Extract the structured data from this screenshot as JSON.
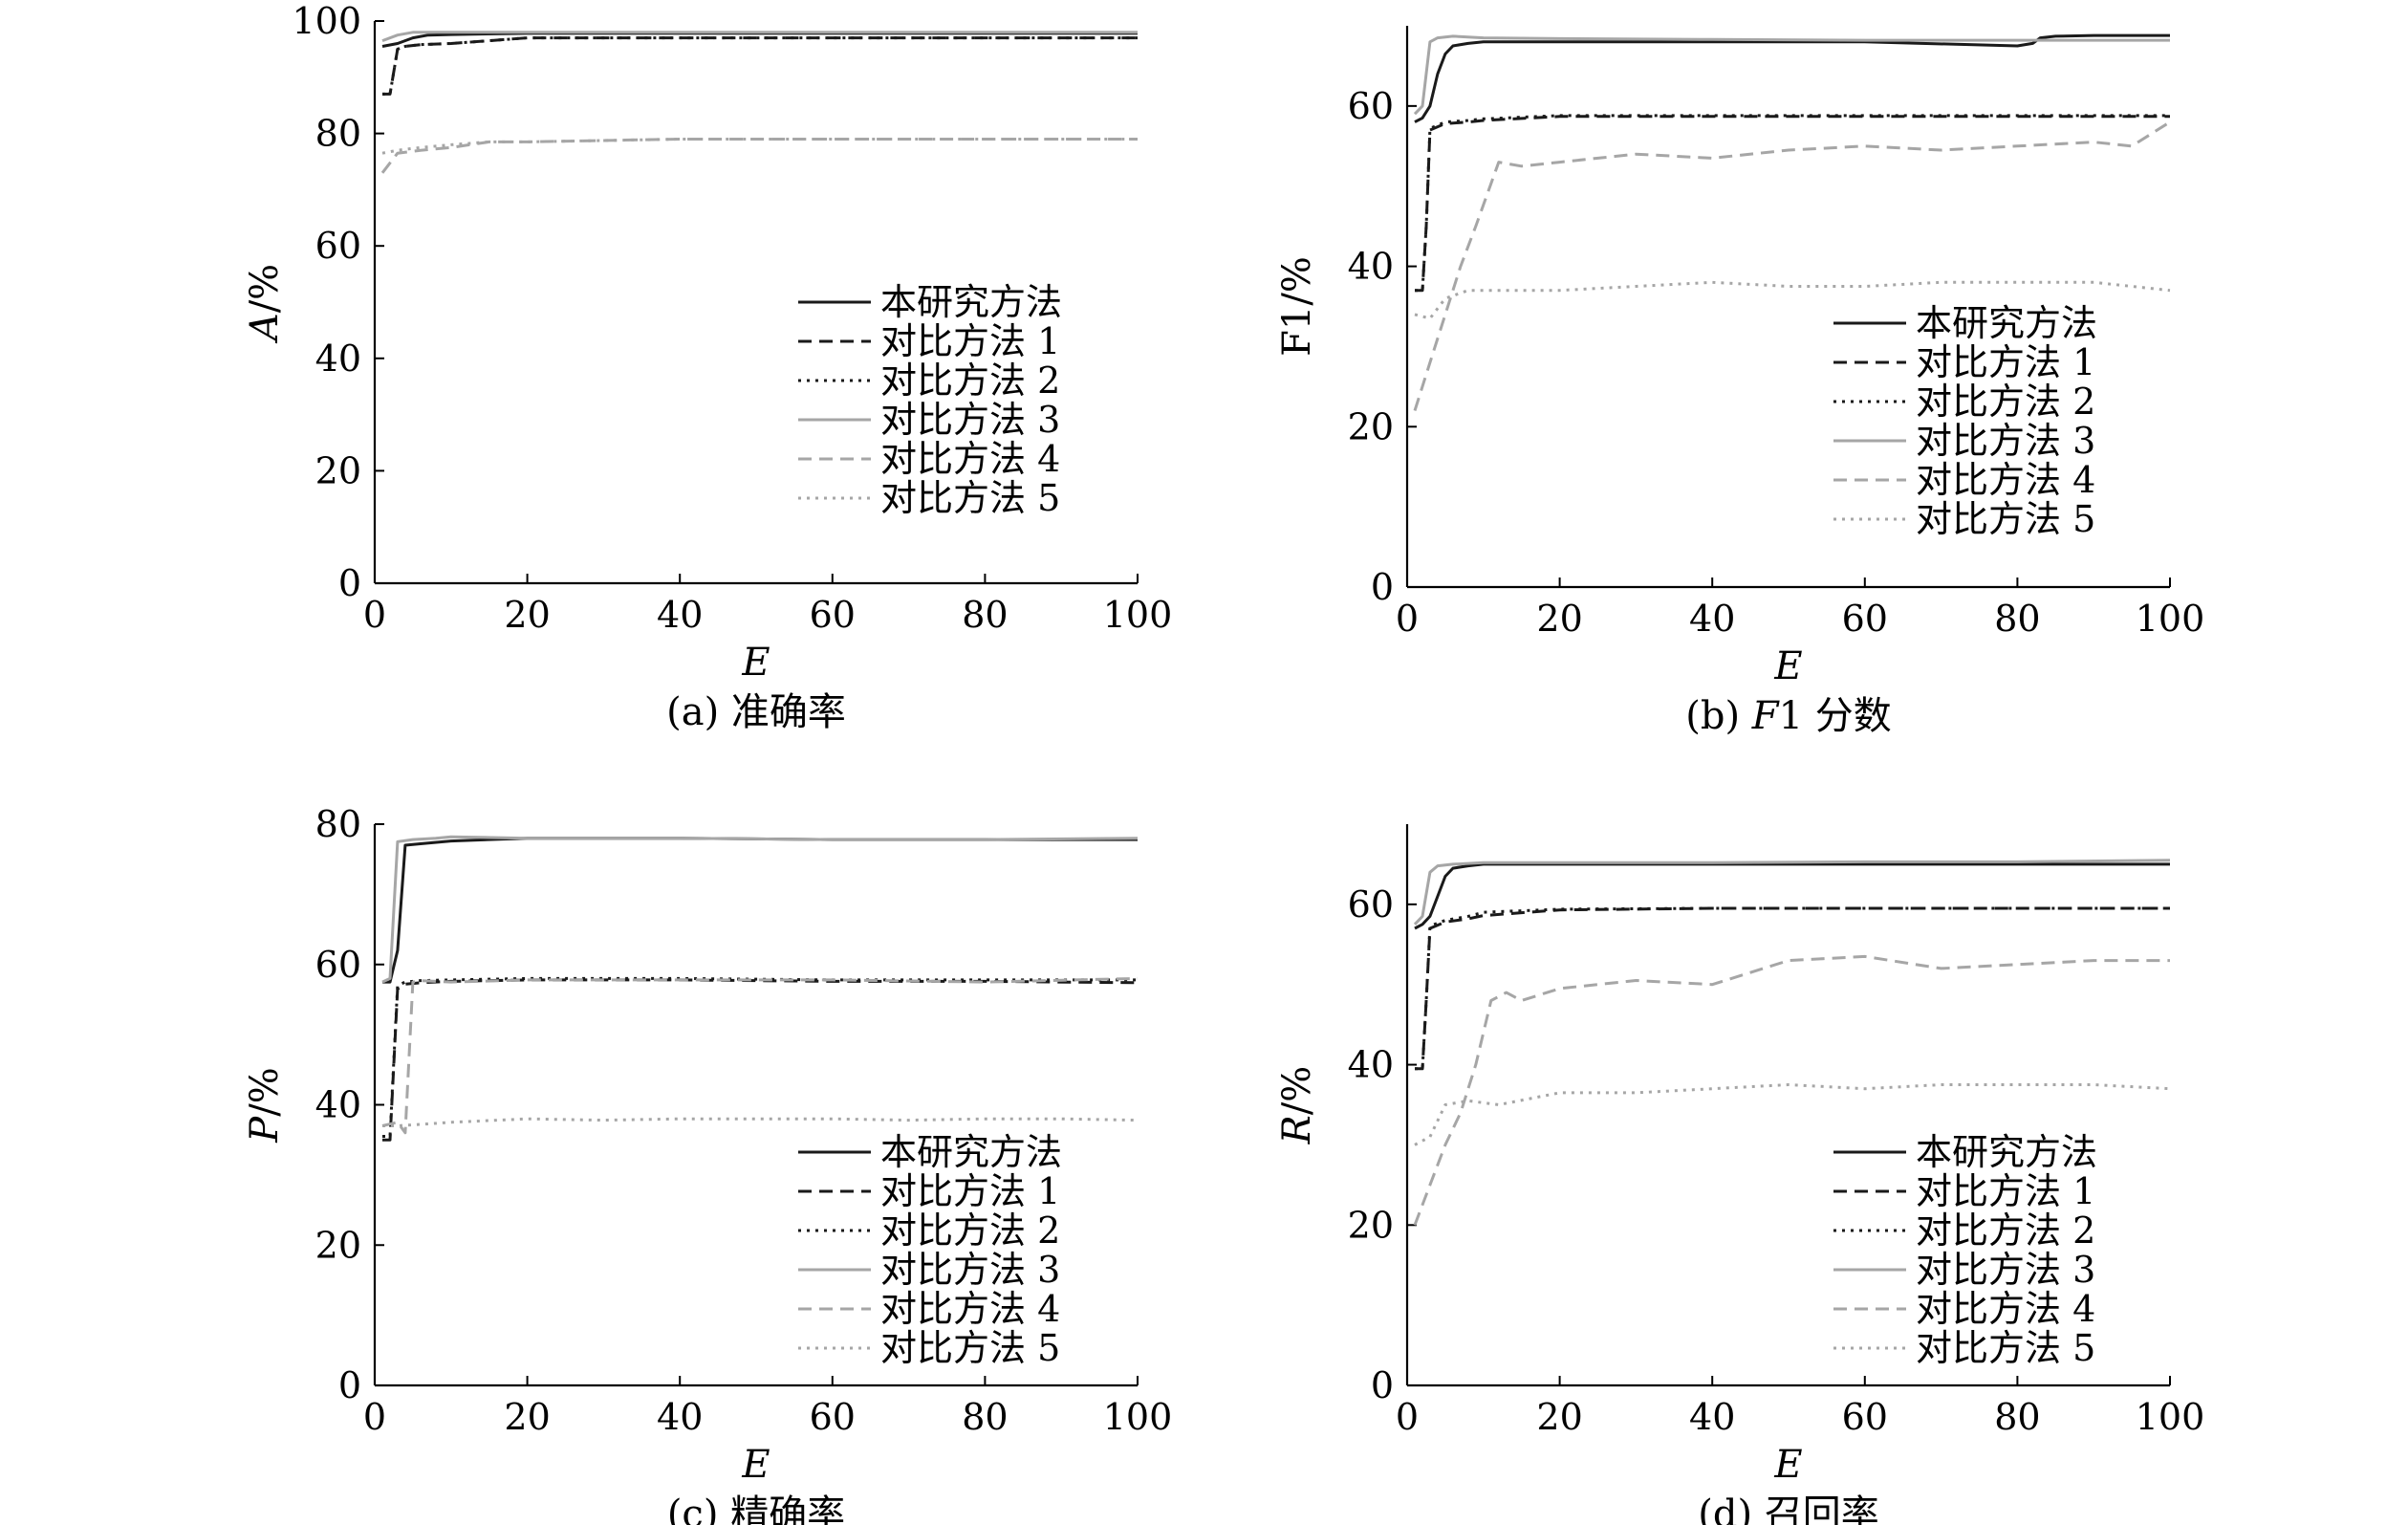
{
  "figure": {
    "legend_labels": [
      "本研究方法",
      "对比方法 1",
      "对比方法 2",
      "对比方法 3",
      "对比方法 4",
      "对比方法 5"
    ],
    "line_styles": [
      {
        "color": "#1a1a1a",
        "dash": "none"
      },
      {
        "color": "#1a1a1a",
        "dash": "14,8"
      },
      {
        "color": "#1a1a1a",
        "dash": "3,6"
      },
      {
        "color": "#a6a6a6",
        "dash": "none"
      },
      {
        "color": "#a6a6a6",
        "dash": "14,8"
      },
      {
        "color": "#a6a6a6",
        "dash": "3,6"
      }
    ]
  },
  "chart_data": [
    {
      "type": "line",
      "caption": "(a) 准确率",
      "xlabel": "E",
      "ylabel": "A/%",
      "xlim": [
        0,
        100
      ],
      "ylim": [
        0,
        100
      ],
      "xticks": [
        0,
        20,
        40,
        60,
        80,
        100
      ],
      "yticks": [
        0,
        20,
        40,
        60,
        80,
        100
      ],
      "legend_position": "center-right",
      "series": [
        {
          "name": "本研究方法",
          "x": [
            1,
            3,
            5,
            7,
            10,
            20,
            40,
            60,
            80,
            100
          ],
          "y": [
            95.5,
            96,
            97,
            97.5,
            97.6,
            97.8,
            97.8,
            97.8,
            97.8,
            97.8
          ]
        },
        {
          "name": "对比方法 1",
          "x": [
            1,
            2,
            3,
            4,
            6,
            10,
            15,
            20,
            40,
            60,
            80,
            100
          ],
          "y": [
            87,
            87,
            95,
            95.5,
            95.8,
            96,
            96.5,
            97,
            97,
            97,
            97,
            97
          ]
        },
        {
          "name": "对比方法 2",
          "x": [
            1,
            2,
            3,
            4,
            6,
            10,
            15,
            20,
            40,
            60,
            80,
            100
          ],
          "y": [
            87,
            87,
            95,
            95.5,
            95.8,
            96,
            96.5,
            97,
            97,
            97,
            97,
            97
          ]
        },
        {
          "name": "对比方法 3",
          "x": [
            1,
            3,
            5,
            10,
            20,
            40,
            60,
            80,
            100
          ],
          "y": [
            96.5,
            97.5,
            98,
            98,
            98,
            98,
            98,
            98,
            98
          ]
        },
        {
          "name": "对比方法 4",
          "x": [
            1,
            3,
            6,
            10,
            15,
            20,
            40,
            60,
            80,
            100
          ],
          "y": [
            73,
            76.5,
            77,
            77.5,
            78.5,
            78.5,
            79,
            79,
            79,
            79
          ]
        },
        {
          "name": "对比方法 5",
          "x": [
            1,
            3,
            6,
            10,
            15,
            20,
            40,
            60,
            80,
            100
          ],
          "y": [
            76.5,
            77,
            77.5,
            78,
            78.5,
            78.5,
            79,
            79,
            79,
            79
          ]
        }
      ]
    },
    {
      "type": "line",
      "caption": "(b) F1 分数",
      "caption_prefix": "(b) ",
      "caption_italic": "F",
      "caption_suffix": "1 分数",
      "xlabel": "E",
      "ylabel": "F1/%",
      "xlim": [
        0,
        100
      ],
      "ylim": [
        0,
        70
      ],
      "xticks": [
        0,
        20,
        40,
        60,
        80,
        100
      ],
      "yticks": [
        0,
        20,
        40,
        60
      ],
      "legend_position": "lower-right",
      "series": [
        {
          "name": "本研究方法",
          "x": [
            1,
            2,
            3,
            4,
            5,
            6,
            8,
            10,
            20,
            40,
            60,
            80,
            82,
            83,
            85,
            90,
            100
          ],
          "y": [
            58,
            58.5,
            60,
            64,
            66.5,
            67.5,
            67.8,
            68,
            68,
            68,
            68,
            67.5,
            67.8,
            68.5,
            68.7,
            68.8,
            68.8
          ]
        },
        {
          "name": "对比方法 1",
          "x": [
            1,
            2,
            2.5,
            3,
            5,
            8,
            10,
            20,
            40,
            60,
            80,
            100
          ],
          "y": [
            37,
            37,
            45,
            57,
            57.8,
            58,
            58.2,
            58.7,
            58.7,
            58.7,
            58.7,
            58.7
          ]
        },
        {
          "name": "对比方法 2",
          "x": [
            1,
            2,
            2.5,
            3,
            5,
            8,
            10,
            20,
            40,
            60,
            80,
            100
          ],
          "y": [
            37,
            37,
            45,
            57.2,
            58,
            58.2,
            58.4,
            58.8,
            58.8,
            58.8,
            58.8,
            58.8
          ]
        },
        {
          "name": "对比方法 3",
          "x": [
            1,
            2,
            3,
            4,
            6,
            10,
            20,
            40,
            60,
            80,
            100
          ],
          "y": [
            59,
            60,
            68,
            68.5,
            68.7,
            68.5,
            68.4,
            68.3,
            68.2,
            68.2,
            68.2
          ]
        },
        {
          "name": "对比方法 4",
          "x": [
            1,
            3,
            5,
            7,
            9,
            12,
            15,
            20,
            30,
            40,
            50,
            60,
            70,
            80,
            90,
            95,
            100
          ],
          "y": [
            22,
            28,
            34,
            40,
            45,
            53,
            52.5,
            53,
            54,
            53.5,
            54.5,
            55,
            54.5,
            55,
            55.5,
            55,
            58
          ]
        },
        {
          "name": "对比方法 5",
          "x": [
            1,
            3,
            5,
            8,
            12,
            20,
            30,
            40,
            50,
            60,
            70,
            80,
            90,
            100
          ],
          "y": [
            34,
            33.5,
            36,
            37,
            37,
            37,
            37.5,
            38,
            37.5,
            37.5,
            38,
            38,
            38,
            37
          ]
        }
      ]
    },
    {
      "type": "line",
      "caption": "(c) 精确率",
      "xlabel": "E",
      "ylabel": "P/%",
      "xlim": [
        0,
        100
      ],
      "ylim": [
        0,
        80
      ],
      "xticks": [
        0,
        20,
        40,
        60,
        80,
        100
      ],
      "yticks": [
        0,
        20,
        40,
        60,
        80
      ],
      "legend_position": "lower-right",
      "series": [
        {
          "name": "本研究方法",
          "x": [
            1,
            2,
            3,
            4,
            6,
            10,
            20,
            40,
            60,
            80,
            100
          ],
          "y": [
            57.5,
            57.5,
            62,
            77,
            77.2,
            77.6,
            78,
            78,
            77.8,
            77.8,
            77.8
          ]
        },
        {
          "name": "对比方法 1",
          "x": [
            1,
            2,
            3,
            4,
            6,
            10,
            20,
            40,
            60,
            80,
            100
          ],
          "y": [
            35,
            35,
            56.5,
            57.2,
            57.4,
            57.6,
            57.8,
            57.8,
            57.6,
            57.6,
            57.4
          ]
        },
        {
          "name": "对比方法 2",
          "x": [
            1,
            2,
            3,
            4,
            6,
            10,
            20,
            40,
            60,
            80,
            100
          ],
          "y": [
            35.5,
            35.5,
            57,
            57.5,
            57.7,
            57.8,
            58,
            58,
            57.8,
            57.8,
            57.8
          ]
        },
        {
          "name": "对比方法 3",
          "x": [
            1,
            2,
            3,
            5,
            8,
            10,
            20,
            40,
            60,
            80,
            100
          ],
          "y": [
            57.5,
            58,
            77.5,
            77.8,
            78,
            78.2,
            78,
            78,
            77.8,
            77.8,
            78
          ]
        },
        {
          "name": "对比方法 4",
          "x": [
            1,
            3,
            4,
            5,
            6,
            10,
            20,
            40,
            60,
            80,
            100
          ],
          "y": [
            37,
            37.5,
            36,
            57.5,
            57.7,
            57.5,
            57.8,
            57.8,
            57.8,
            57.5,
            58
          ]
        },
        {
          "name": "对比方法 5",
          "x": [
            1,
            3,
            6,
            10,
            20,
            30,
            40,
            50,
            60,
            70,
            80,
            90,
            100
          ],
          "y": [
            37,
            37,
            37.2,
            37.5,
            38,
            37.8,
            38,
            38,
            38,
            37.8,
            38,
            38,
            37.8
          ]
        }
      ]
    },
    {
      "type": "line",
      "caption": "(d) 召回率",
      "xlabel": "E",
      "ylabel": "R/%",
      "xlim": [
        0,
        100
      ],
      "ylim": [
        0,
        70
      ],
      "xticks": [
        0,
        20,
        40,
        60,
        80,
        100
      ],
      "yticks": [
        0,
        20,
        40,
        60
      ],
      "legend_position": "lower-right",
      "series": [
        {
          "name": "本研究方法",
          "x": [
            1,
            2,
            3,
            4,
            5,
            6,
            8,
            10,
            20,
            40,
            60,
            80,
            100
          ],
          "y": [
            57,
            57.5,
            58.5,
            61,
            63.5,
            64.5,
            64.8,
            65,
            65,
            65,
            65,
            65,
            65
          ]
        },
        {
          "name": "对比方法 1",
          "x": [
            1,
            2,
            2.5,
            3,
            5,
            8,
            10,
            20,
            40,
            60,
            80,
            100
          ],
          "y": [
            39.5,
            39.5,
            48,
            57,
            57.8,
            58.2,
            58.6,
            59.3,
            59.5,
            59.5,
            59.5,
            59.5
          ]
        },
        {
          "name": "对比方法 2",
          "x": [
            1,
            2,
            2.5,
            3,
            5,
            8,
            10,
            20,
            40,
            60,
            80,
            100
          ],
          "y": [
            39.5,
            39.5,
            48,
            57.3,
            58,
            58.5,
            59,
            59.4,
            59.5,
            59.5,
            59.5,
            59.5
          ]
        },
        {
          "name": "对比方法 3",
          "x": [
            1,
            2,
            3,
            4,
            6,
            10,
            20,
            40,
            60,
            80,
            100
          ],
          "y": [
            57.5,
            58.5,
            64,
            64.8,
            65,
            65.2,
            65.2,
            65.2,
            65.3,
            65.3,
            65.5
          ]
        },
        {
          "name": "对比方法 4",
          "x": [
            1,
            3,
            5,
            7,
            9,
            11,
            13,
            15,
            20,
            30,
            40,
            50,
            60,
            70,
            80,
            90,
            100
          ],
          "y": [
            20,
            25,
            30,
            34,
            40,
            48,
            49,
            48,
            49.5,
            50.5,
            50,
            53,
            53.5,
            52,
            52.5,
            53,
            53
          ]
        },
        {
          "name": "对比方法 5",
          "x": [
            1,
            3,
            5,
            8,
            12,
            20,
            30,
            40,
            50,
            60,
            70,
            80,
            90,
            100
          ],
          "y": [
            30,
            31,
            35,
            35.5,
            35,
            36.5,
            36.5,
            37,
            37.5,
            37,
            37.5,
            37.5,
            37.5,
            37
          ]
        }
      ]
    }
  ]
}
